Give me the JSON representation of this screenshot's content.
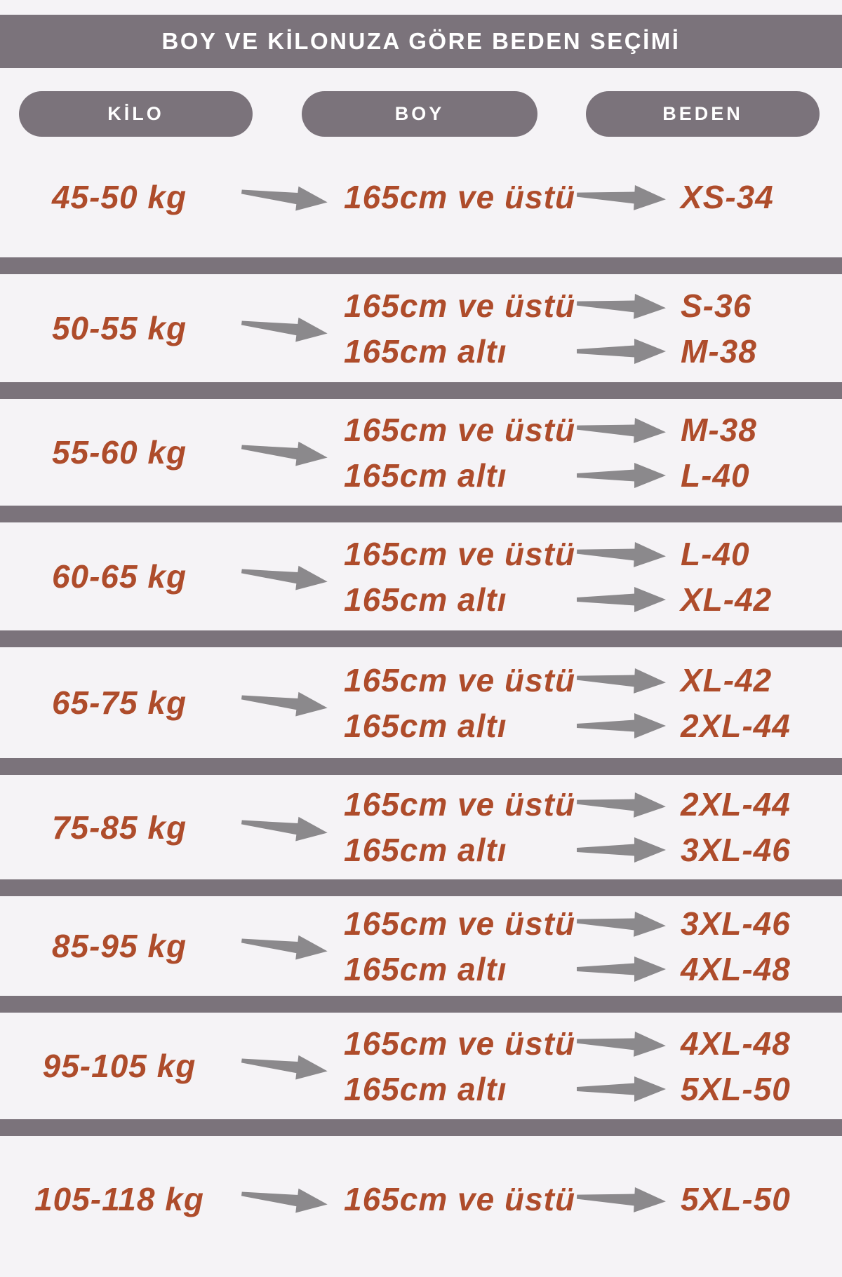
{
  "header": {
    "title": "BOY VE KİLONUZA GÖRE BEDEN SEÇİMİ"
  },
  "columns": {
    "kilo": "KİLO",
    "boy": "BOY",
    "beden": "BEDEN"
  },
  "rows": [
    {
      "kilo": "45-50 kg",
      "mappings": [
        {
          "boy": "165cm ve üstü",
          "beden": "XS-34"
        }
      ]
    },
    {
      "kilo": "50-55 kg",
      "mappings": [
        {
          "boy": "165cm ve üstü",
          "beden": "S-36"
        },
        {
          "boy": "165cm altı",
          "beden": "M-38"
        }
      ]
    },
    {
      "kilo": "55-60 kg",
      "mappings": [
        {
          "boy": "165cm ve üstü",
          "beden": "M-38"
        },
        {
          "boy": "165cm altı",
          "beden": "L-40"
        }
      ]
    },
    {
      "kilo": "60-65 kg",
      "mappings": [
        {
          "boy": "165cm ve üstü",
          "beden": "L-40"
        },
        {
          "boy": "165cm altı",
          "beden": "XL-42"
        }
      ]
    },
    {
      "kilo": "65-75 kg",
      "mappings": [
        {
          "boy": "165cm ve üstü",
          "beden": "XL-42"
        },
        {
          "boy": "165cm altı",
          "beden": "2XL-44"
        }
      ]
    },
    {
      "kilo": "75-85 kg",
      "mappings": [
        {
          "boy": "165cm ve üstü",
          "beden": "2XL-44"
        },
        {
          "boy": "165cm altı",
          "beden": "3XL-46"
        }
      ]
    },
    {
      "kilo": "85-95 kg",
      "mappings": [
        {
          "boy": "165cm ve üstü",
          "beden": "3XL-46"
        },
        {
          "boy": "165cm altı",
          "beden": "4XL-48"
        }
      ]
    },
    {
      "kilo": "95-105 kg",
      "mappings": [
        {
          "boy": "165cm ve üstü",
          "beden": "4XL-48"
        },
        {
          "boy": "165cm altı",
          "beden": "5XL-50"
        }
      ]
    },
    {
      "kilo": "105-118 kg",
      "mappings": [
        {
          "boy": "165cm ve üstü",
          "beden": "5XL-50"
        }
      ]
    }
  ],
  "colors": {
    "background": "#f5f3f6",
    "bar": "#7b737b",
    "arrow": "#8b898c",
    "text": "#ae4c2b",
    "header_text": "#ffffff"
  }
}
